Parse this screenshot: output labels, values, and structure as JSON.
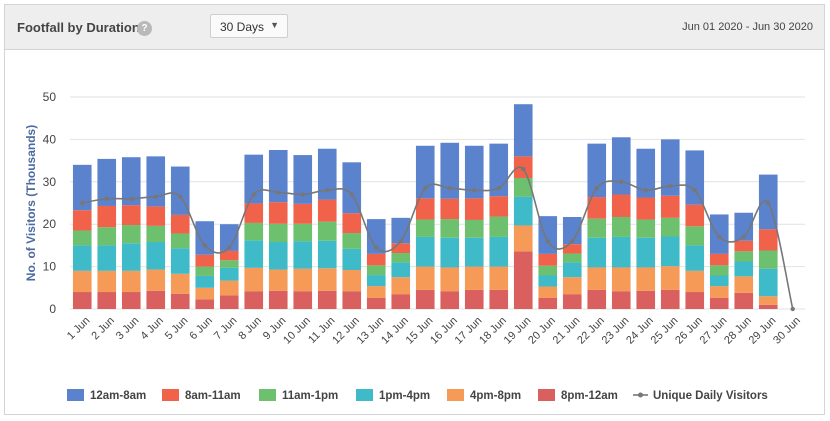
{
  "header": {
    "title": "Footfall by Duration",
    "help_icon": "?",
    "period_select": "30 Days",
    "date_range": "Jun 01 2020 - Jun 30 2020"
  },
  "chart_data": {
    "type": "bar",
    "stacked": true,
    "ylabel": "No. of Visitors (Thousands)",
    "ylim": [
      0,
      50
    ],
    "yticks": [
      0,
      10,
      20,
      30,
      40,
      50
    ],
    "grid": true,
    "legend_position": "bottom",
    "categories": [
      "1 Jun",
      "2 Jun",
      "3 Jun",
      "4 Jun",
      "5 Jun",
      "6 Jun",
      "7 Jun",
      "8 Jun",
      "9 Jun",
      "10 Jun",
      "11 Jun",
      "12 Jun",
      "13 Jun",
      "14 Jun",
      "15 Jun",
      "16 Jun",
      "17 Jun",
      "18 Jun",
      "19 Jun",
      "20 Jun",
      "21 Jun",
      "22 Jun",
      "23 Jun",
      "24 Jun",
      "25 Jun",
      "26 Jun",
      "27 Jun",
      "28 Jun",
      "29 Jun",
      "30 Jun"
    ],
    "series": [
      {
        "name": "8pm-12am",
        "color": "#d9605f",
        "values": [
          4,
          4,
          4,
          4.3,
          3.6,
          2.3,
          3.2,
          4.2,
          4.3,
          4.2,
          4.3,
          4.2,
          2.6,
          3.5,
          4.5,
          4.2,
          4.5,
          4.5,
          13.6,
          2.6,
          3.5,
          4.5,
          4.2,
          4.3,
          4.5,
          4,
          2.6,
          3.8,
          1,
          0
        ]
      },
      {
        "name": "4pm-8pm",
        "color": "#f59a57",
        "values": [
          5,
          5,
          5,
          5,
          4.7,
          2.7,
          3.5,
          5.5,
          5,
          5.3,
          5.3,
          5,
          2.8,
          4,
          5.5,
          5.6,
          5.5,
          5.5,
          6.1,
          2.7,
          4,
          5.3,
          5.6,
          5.5,
          5.6,
          5,
          2.8,
          3.9,
          2,
          0
        ]
      },
      {
        "name": "1pm-4pm",
        "color": "#3fbac8",
        "values": [
          6,
          6,
          6.5,
          6.5,
          6,
          2.8,
          3,
          6.5,
          6.5,
          6.5,
          6.5,
          5,
          2.6,
          3.5,
          7,
          7,
          6.8,
          7,
          6.8,
          2.6,
          3.5,
          7,
          7.2,
          7,
          7,
          6,
          2.5,
          3.5,
          6.5,
          0
        ]
      },
      {
        "name": "11am-1pm",
        "color": "#6cc06e",
        "values": [
          3.5,
          4.3,
          4.3,
          3.8,
          3.5,
          2.2,
          1.8,
          4.1,
          4.3,
          4.1,
          4.5,
          3.7,
          2.3,
          2.2,
          4.1,
          4.4,
          4.2,
          4.8,
          4.4,
          2.3,
          2.1,
          4.5,
          4.7,
          4.3,
          4.4,
          4.5,
          2.4,
          2.4,
          4.3,
          0
        ]
      },
      {
        "name": "8am-11am",
        "color": "#f0634a",
        "values": [
          4.8,
          5,
          4.7,
          4.6,
          4.4,
          2.8,
          2.2,
          4.6,
          5.1,
          4.7,
          5.2,
          4.7,
          2.7,
          2.3,
          5,
          4.8,
          5.1,
          4.8,
          5.1,
          2.8,
          2.2,
          5.1,
          5.3,
          5.2,
          5.2,
          5.1,
          2.7,
          2.5,
          5,
          0
        ]
      },
      {
        "name": "12am-8am",
        "color": "#5b82cd",
        "values": [
          10.7,
          11.1,
          11.3,
          11.8,
          11.4,
          7.9,
          6.3,
          11.5,
          12.3,
          11.5,
          12,
          12,
          8.2,
          6,
          12.4,
          13.2,
          12.4,
          12.4,
          12.3,
          8.9,
          6.4,
          12.6,
          13.5,
          11.5,
          13.3,
          12.8,
          9.3,
          6.6,
          12.9,
          0
        ]
      }
    ],
    "line_series": {
      "name": "Unique Daily Visitors",
      "color": "#777777",
      "values": [
        25,
        26,
        26,
        26.5,
        26.5,
        15,
        14.5,
        27,
        27.5,
        27,
        28,
        27,
        14.5,
        16,
        28.5,
        28.5,
        28,
        28.5,
        33,
        16,
        16,
        28.5,
        30,
        28,
        29,
        28,
        17,
        17,
        25,
        0
      ]
    }
  },
  "legend": [
    {
      "label": "12am-8am",
      "color": "#5b82cd",
      "kind": "box"
    },
    {
      "label": "8am-11am",
      "color": "#f0634a",
      "kind": "box"
    },
    {
      "label": "11am-1pm",
      "color": "#6cc06e",
      "kind": "box"
    },
    {
      "label": "1pm-4pm",
      "color": "#3fbac8",
      "kind": "box"
    },
    {
      "label": "4pm-8pm",
      "color": "#f59a57",
      "kind": "box"
    },
    {
      "label": "8pm-12am",
      "color": "#d9605f",
      "kind": "box"
    },
    {
      "label": "Unique Daily Visitors",
      "color": "#777777",
      "kind": "line"
    }
  ]
}
